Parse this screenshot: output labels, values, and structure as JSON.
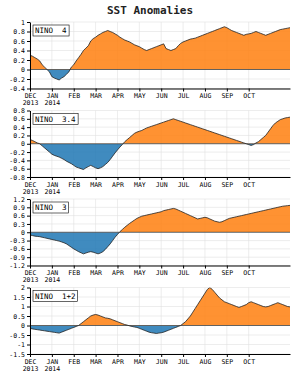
{
  "chart_data": [
    {
      "type": "area",
      "title": "SST Anomalies",
      "subtitle": "NINO  4",
      "grid": true,
      "ylim": [
        -0.4,
        1.0
      ],
      "yticks": [
        -0.4,
        -0.2,
        0,
        0.2,
        0.4,
        0.6,
        0.8,
        1
      ],
      "categories": [
        "DEC\n2013",
        null,
        null,
        null,
        null,
        null,
        null,
        null,
        null,
        "JAN\n2014",
        null,
        null,
        null,
        null,
        null,
        null,
        null,
        null,
        "FEB",
        null,
        null,
        null,
        null,
        null,
        null,
        null,
        null,
        "MAR",
        null,
        null,
        null,
        null,
        null,
        null,
        null,
        null,
        "APR",
        null,
        null,
        null,
        null,
        null,
        null,
        null,
        null,
        "MAY",
        null,
        null,
        null,
        null,
        null,
        null,
        null,
        null,
        "JUN",
        null,
        null,
        null,
        null,
        null,
        null,
        null,
        null,
        "JUL",
        null,
        null,
        null,
        null,
        null,
        null,
        null,
        null,
        "AUG",
        null,
        null,
        null,
        null,
        null,
        null,
        null,
        null,
        "SEP",
        null,
        null,
        null,
        null,
        null,
        null,
        null,
        null,
        "OCT",
        null,
        null,
        null,
        null,
        null,
        null,
        null,
        null,
        null,
        null,
        null,
        null,
        null,
        null,
        null,
        null,
        null
      ],
      "values": [
        0.3,
        0.28,
        0.25,
        0.22,
        0.18,
        0.1,
        0.05,
        0.0,
        -0.05,
        -0.15,
        -0.18,
        -0.2,
        -0.22,
        -0.18,
        -0.15,
        -0.1,
        -0.05,
        0.05,
        0.1,
        0.18,
        0.25,
        0.32,
        0.4,
        0.45,
        0.5,
        0.6,
        0.65,
        0.68,
        0.72,
        0.75,
        0.78,
        0.8,
        0.82,
        0.8,
        0.78,
        0.75,
        0.72,
        0.68,
        0.65,
        0.62,
        0.6,
        0.58,
        0.55,
        0.52,
        0.5,
        0.48,
        0.45,
        0.42,
        0.4,
        0.42,
        0.44,
        0.46,
        0.48,
        0.5,
        0.52,
        0.54,
        0.44,
        0.42,
        0.4,
        0.42,
        0.44,
        0.5,
        0.55,
        0.58,
        0.6,
        0.62,
        0.64,
        0.65,
        0.66,
        0.68,
        0.7,
        0.72,
        0.74,
        0.76,
        0.78,
        0.8,
        0.82,
        0.84,
        0.86,
        0.88,
        0.9,
        0.88,
        0.85,
        0.82,
        0.8,
        0.78,
        0.76,
        0.74,
        0.72,
        0.74,
        0.75,
        0.76,
        0.78,
        0.8,
        0.78,
        0.76,
        0.74,
        0.72,
        0.74,
        0.76,
        0.78,
        0.8,
        0.82,
        0.84,
        0.85,
        0.86,
        0.87,
        0.88
      ]
    },
    {
      "type": "area",
      "subtitle": "NINO  3.4",
      "grid": true,
      "ylim": [
        -0.8,
        0.8
      ],
      "yticks": [
        -0.8,
        -0.6,
        -0.4,
        -0.2,
        0,
        0.2,
        0.4,
        0.6,
        0.8
      ],
      "categories": [
        "DEC\n2013",
        null,
        null,
        null,
        null,
        null,
        null,
        null,
        null,
        "JAN\n2014",
        null,
        null,
        null,
        null,
        null,
        null,
        null,
        null,
        "FEB",
        null,
        null,
        null,
        null,
        null,
        null,
        null,
        null,
        "MAR",
        null,
        null,
        null,
        null,
        null,
        null,
        null,
        null,
        "APR",
        null,
        null,
        null,
        null,
        null,
        null,
        null,
        null,
        "MAY",
        null,
        null,
        null,
        null,
        null,
        null,
        null,
        null,
        "JUN",
        null,
        null,
        null,
        null,
        null,
        null,
        null,
        null,
        "JUL",
        null,
        null,
        null,
        null,
        null,
        null,
        null,
        null,
        "AUG",
        null,
        null,
        null,
        null,
        null,
        null,
        null,
        null,
        "SEP",
        null,
        null,
        null,
        null,
        null,
        null,
        null,
        null,
        "OCT",
        null,
        null,
        null,
        null,
        null,
        null,
        null,
        null,
        null,
        null,
        null,
        null,
        null,
        null,
        null,
        null,
        null
      ],
      "values": [
        0.1,
        0.08,
        0.05,
        0.02,
        0.0,
        -0.05,
        -0.1,
        -0.15,
        -0.2,
        -0.25,
        -0.28,
        -0.3,
        -0.32,
        -0.35,
        -0.38,
        -0.42,
        -0.45,
        -0.48,
        -0.52,
        -0.56,
        -0.58,
        -0.6,
        -0.62,
        -0.58,
        -0.55,
        -0.52,
        -0.55,
        -0.58,
        -0.6,
        -0.58,
        -0.55,
        -0.5,
        -0.45,
        -0.38,
        -0.3,
        -0.22,
        -0.15,
        -0.08,
        -0.02,
        0.05,
        0.1,
        0.15,
        0.2,
        0.25,
        0.28,
        0.3,
        0.32,
        0.35,
        0.38,
        0.4,
        0.42,
        0.44,
        0.46,
        0.48,
        0.5,
        0.52,
        0.54,
        0.56,
        0.58,
        0.6,
        0.58,
        0.56,
        0.54,
        0.52,
        0.5,
        0.48,
        0.46,
        0.44,
        0.42,
        0.4,
        0.38,
        0.36,
        0.34,
        0.32,
        0.3,
        0.28,
        0.26,
        0.24,
        0.22,
        0.2,
        0.18,
        0.16,
        0.14,
        0.12,
        0.1,
        0.08,
        0.06,
        0.04,
        0.02,
        0.0,
        -0.02,
        -0.04,
        -0.02,
        0.02,
        0.05,
        0.1,
        0.15,
        0.2,
        0.28,
        0.36,
        0.44,
        0.5,
        0.54,
        0.58,
        0.6,
        0.62,
        0.63,
        0.64
      ]
    },
    {
      "type": "area",
      "subtitle": "NINO  3",
      "grid": true,
      "ylim": [
        -1.2,
        1.2
      ],
      "yticks": [
        -1.2,
        -0.9,
        -0.6,
        -0.3,
        0,
        0.3,
        0.6,
        0.9,
        1.2
      ],
      "categories": [
        "DEC\n2013",
        null,
        null,
        null,
        null,
        null,
        null,
        null,
        null,
        "JAN\n2014",
        null,
        null,
        null,
        null,
        null,
        null,
        null,
        null,
        "FEB",
        null,
        null,
        null,
        null,
        null,
        null,
        null,
        null,
        "MAR",
        null,
        null,
        null,
        null,
        null,
        null,
        null,
        null,
        "APR",
        null,
        null,
        null,
        null,
        null,
        null,
        null,
        null,
        "MAY",
        null,
        null,
        null,
        null,
        null,
        null,
        null,
        null,
        "JUN",
        null,
        null,
        null,
        null,
        null,
        null,
        null,
        null,
        "JUL",
        null,
        null,
        null,
        null,
        null,
        null,
        null,
        null,
        "AUG",
        null,
        null,
        null,
        null,
        null,
        null,
        null,
        null,
        "SEP",
        null,
        null,
        null,
        null,
        null,
        null,
        null,
        null,
        "OCT",
        null,
        null,
        null,
        null,
        null,
        null,
        null,
        null,
        null,
        null,
        null,
        null,
        null,
        null,
        null,
        null,
        null
      ],
      "values": [
        -0.1,
        -0.12,
        -0.14,
        -0.15,
        -0.16,
        -0.18,
        -0.2,
        -0.22,
        -0.24,
        -0.26,
        -0.28,
        -0.3,
        -0.32,
        -0.35,
        -0.38,
        -0.42,
        -0.48,
        -0.54,
        -0.6,
        -0.65,
        -0.7,
        -0.74,
        -0.78,
        -0.75,
        -0.72,
        -0.7,
        -0.72,
        -0.75,
        -0.78,
        -0.75,
        -0.7,
        -0.62,
        -0.52,
        -0.42,
        -0.3,
        -0.18,
        -0.08,
        0.02,
        0.1,
        0.18,
        0.25,
        0.32,
        0.38,
        0.44,
        0.5,
        0.54,
        0.58,
        0.6,
        0.62,
        0.64,
        0.66,
        0.68,
        0.7,
        0.72,
        0.74,
        0.78,
        0.8,
        0.82,
        0.84,
        0.86,
        0.84,
        0.8,
        0.76,
        0.72,
        0.68,
        0.64,
        0.6,
        0.56,
        0.52,
        0.48,
        0.5,
        0.52,
        0.54,
        0.52,
        0.48,
        0.44,
        0.4,
        0.38,
        0.36,
        0.38,
        0.42,
        0.46,
        0.5,
        0.52,
        0.54,
        0.56,
        0.58,
        0.6,
        0.62,
        0.64,
        0.66,
        0.68,
        0.7,
        0.72,
        0.74,
        0.76,
        0.78,
        0.8,
        0.82,
        0.84,
        0.86,
        0.88,
        0.9,
        0.92,
        0.94,
        0.95,
        0.96,
        0.97
      ]
    },
    {
      "type": "area",
      "subtitle": "NINO  1+2",
      "grid": true,
      "ylim": [
        -1.5,
        2.0
      ],
      "yticks": [
        -1.5,
        -1,
        -0.5,
        0,
        0.5,
        1,
        1.5,
        2
      ],
      "categories": [
        "DEC\n2013",
        null,
        null,
        null,
        null,
        null,
        null,
        null,
        null,
        "JAN\n2014",
        null,
        null,
        null,
        null,
        null,
        null,
        null,
        null,
        "FEB",
        null,
        null,
        null,
        null,
        null,
        null,
        null,
        null,
        "MAR",
        null,
        null,
        null,
        null,
        null,
        null,
        null,
        null,
        "APR",
        null,
        null,
        null,
        null,
        null,
        null,
        null,
        null,
        "MAY",
        null,
        null,
        null,
        null,
        null,
        null,
        null,
        null,
        "JUN",
        null,
        null,
        null,
        null,
        null,
        null,
        null,
        null,
        "JUL",
        null,
        null,
        null,
        null,
        null,
        null,
        null,
        null,
        "AUG",
        null,
        null,
        null,
        null,
        null,
        null,
        null,
        null,
        "SEP",
        null,
        null,
        null,
        null,
        null,
        null,
        null,
        null,
        "OCT",
        null,
        null,
        null,
        null,
        null,
        null,
        null,
        null,
        null,
        null,
        null,
        null,
        null,
        null,
        null,
        null,
        null
      ],
      "values": [
        -0.15,
        -0.18,
        -0.2,
        -0.22,
        -0.24,
        -0.26,
        -0.28,
        -0.3,
        -0.32,
        -0.34,
        -0.36,
        -0.38,
        -0.4,
        -0.35,
        -0.3,
        -0.25,
        -0.2,
        -0.15,
        -0.1,
        -0.05,
        0.0,
        0.1,
        0.2,
        0.3,
        0.4,
        0.5,
        0.55,
        0.58,
        0.55,
        0.5,
        0.45,
        0.4,
        0.38,
        0.35,
        0.3,
        0.25,
        0.2,
        0.15,
        0.1,
        0.05,
        0.02,
        -0.02,
        -0.05,
        -0.08,
        -0.1,
        -0.15,
        -0.2,
        -0.25,
        -0.3,
        -0.35,
        -0.38,
        -0.4,
        -0.42,
        -0.4,
        -0.38,
        -0.35,
        -0.3,
        -0.25,
        -0.2,
        -0.15,
        -0.1,
        -0.05,
        0.0,
        0.1,
        0.2,
        0.35,
        0.5,
        0.7,
        0.9,
        1.1,
        1.3,
        1.5,
        1.7,
        1.9,
        2.0,
        1.9,
        1.75,
        1.6,
        1.45,
        1.35,
        1.25,
        1.2,
        1.15,
        1.1,
        1.05,
        1.0,
        0.95,
        1.0,
        1.05,
        1.1,
        1.2,
        1.25,
        1.2,
        1.15,
        1.1,
        1.05,
        1.0,
        0.98,
        1.0,
        1.05,
        1.1,
        1.15,
        1.2,
        1.15,
        1.1,
        1.05,
        1.0,
        0.98
      ]
    }
  ]
}
